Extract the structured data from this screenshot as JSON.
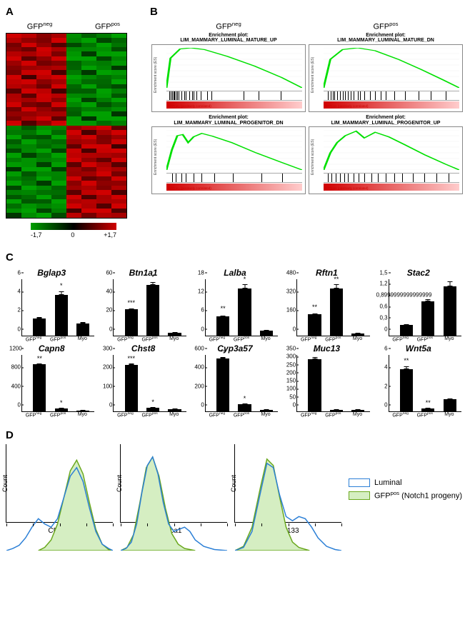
{
  "panelA": {
    "label": "A",
    "headers": [
      "GFPneg",
      "GFPpos"
    ],
    "cols": 8,
    "rows": 40,
    "scale": {
      "min": "-1,7",
      "mid": "0",
      "max": "+1,7"
    },
    "colors": {
      "low": "#00a000",
      "mid": "#000000",
      "high": "#d00000"
    }
  },
  "panelB": {
    "label": "B",
    "headers": [
      "GFPneg",
      "GFPpos"
    ],
    "curve_color": "#00e000",
    "ylabel": "Enrichment score (ES)",
    "plots": [
      {
        "title": "Enrichment plot:",
        "subtitle": "LIM_MAMMARY_LUMINAL_MATURE_UP",
        "curve": [
          [
            0,
            0
          ],
          [
            3,
            52
          ],
          [
            10,
            68
          ],
          [
            18,
            70
          ],
          [
            28,
            67
          ],
          [
            45,
            55
          ],
          [
            65,
            38
          ],
          [
            85,
            18
          ],
          [
            100,
            0
          ]
        ],
        "yticks": [
          "0.7",
          "0.6",
          "0.5",
          "0.4",
          "0.3",
          "0.2",
          "0.1",
          "0.0"
        ],
        "ticks": [
          2,
          3,
          4,
          5,
          6,
          7,
          8,
          9,
          11,
          13,
          14,
          17,
          19,
          20,
          22,
          25,
          30,
          33,
          57,
          68,
          84
        ],
        "corner": "GFPneg (positively correlated)"
      },
      {
        "title": "Enrichment plot:",
        "subtitle": "LIM_MAMMARY_LUMINAL_MATURE_DN",
        "curve": [
          [
            0,
            0
          ],
          [
            5,
            50
          ],
          [
            14,
            67
          ],
          [
            25,
            70
          ],
          [
            38,
            65
          ],
          [
            55,
            50
          ],
          [
            72,
            32
          ],
          [
            88,
            14
          ],
          [
            100,
            0
          ]
        ],
        "yticks": [
          "0.55",
          "0.50",
          "0.45",
          "0.40",
          "0.35",
          "0.30",
          "0.25",
          "0.20",
          "0.15",
          "0.10",
          "0.05",
          "0.00"
        ],
        "ticks": [
          3,
          5,
          7,
          8,
          10,
          12,
          14,
          16,
          18,
          20,
          22,
          25,
          27,
          30,
          34,
          38,
          42,
          46,
          52,
          60,
          70,
          79,
          90
        ],
        "corner": "GFPpos (positively correlated)"
      },
      {
        "title": "Enrichment plot:",
        "subtitle": "LIM_MAMMARY_LUMINAL_PROGENITOR_DN",
        "curve": [
          [
            0,
            0
          ],
          [
            4,
            35
          ],
          [
            8,
            60
          ],
          [
            12,
            62
          ],
          [
            16,
            48
          ],
          [
            20,
            58
          ],
          [
            26,
            64
          ],
          [
            34,
            59
          ],
          [
            48,
            48
          ],
          [
            66,
            30
          ],
          [
            84,
            14
          ],
          [
            100,
            0
          ]
        ],
        "yticks": [
          "0.55",
          "0.50",
          "0.45",
          "0.40",
          "0.35",
          "0.30",
          "0.25",
          "0.20",
          "0.15",
          "0.10",
          "0.05",
          "0.00"
        ],
        "ticks": [
          4,
          7,
          11,
          14,
          20,
          26,
          35,
          49,
          70,
          85
        ],
        "corner": "GFPneg (positively correlated)"
      },
      {
        "title": "Enrichment plot:",
        "subtitle": "LIM_MAMMARY_LUMINAL_PROGENITOR_UP",
        "curve": [
          [
            0,
            0
          ],
          [
            5,
            30
          ],
          [
            10,
            48
          ],
          [
            16,
            60
          ],
          [
            24,
            68
          ],
          [
            30,
            56
          ],
          [
            38,
            66
          ],
          [
            48,
            58
          ],
          [
            60,
            44
          ],
          [
            75,
            26
          ],
          [
            90,
            10
          ],
          [
            100,
            0
          ]
        ],
        "yticks": [
          "0.6",
          "0.5",
          "0.4",
          "0.3",
          "0.2",
          "0.1",
          "0.0"
        ],
        "ticks": [
          3,
          6,
          9,
          12,
          15,
          18,
          22,
          26,
          30,
          35,
          40,
          46,
          52,
          58,
          66,
          74,
          83,
          92
        ],
        "corner": "GFPpos (positively correlated)"
      }
    ]
  },
  "panelC": {
    "label": "C",
    "xlabels": [
      "GFPneg",
      "GFPpos",
      "Myo"
    ],
    "bar_color": "#000000",
    "font_italic": true,
    "charts": [
      {
        "gene": "Bglap3",
        "ymax": 6,
        "ytick_step": 2,
        "bars": [
          {
            "v": 1.8,
            "err": 0.6,
            "sig": ""
          },
          {
            "v": 4.3,
            "err": 0.5,
            "sig": "*"
          },
          {
            "v": 1.3,
            "err": 0.5,
            "sig": ""
          }
        ]
      },
      {
        "gene": "Btn1a1",
        "ymax": 60,
        "ytick_step": 20,
        "bars": [
          {
            "v": 28,
            "err": 2,
            "sig": "***"
          },
          {
            "v": 54,
            "err": 3,
            "sig": "*"
          },
          {
            "v": 3,
            "err": 1,
            "sig": ""
          }
        ]
      },
      {
        "gene": "Lalba",
        "ymax": 18,
        "ytick_step": 6,
        "bars": [
          {
            "v": 6,
            "err": 1,
            "sig": "**"
          },
          {
            "v": 15,
            "err": 1.5,
            "sig": "*"
          },
          {
            "v": 1.5,
            "err": 0.5,
            "sig": ""
          }
        ]
      },
      {
        "gene": "Rftn1",
        "ymax": 480,
        "ytick_step": 160,
        "bars": [
          {
            "v": 180,
            "err": 20,
            "sig": "**"
          },
          {
            "v": 400,
            "err": 40,
            "sig": "**"
          },
          {
            "v": 15,
            "err": 5,
            "sig": ""
          }
        ]
      },
      {
        "gene": "Stac2",
        "ymax": 1.5,
        "ytick_step": 0.3,
        "bars": [
          {
            "v": 0.28,
            "err": 0.03,
            "sig": ""
          },
          {
            "v": 0.9,
            "err": 0.1,
            "sig": ""
          },
          {
            "v": 1.3,
            "err": 0.15,
            "sig": ""
          }
        ],
        "yfmt": "comma"
      },
      {
        "gene": "Capn8",
        "ymax": 1200,
        "ytick_step": 400,
        "bars": [
          {
            "v": 1000,
            "err": 30,
            "sig": "**"
          },
          {
            "v": 60,
            "err": 20,
            "sig": "*"
          },
          {
            "v": 20,
            "err": 5,
            "sig": ""
          }
        ]
      },
      {
        "gene": "Chst8",
        "ymax": 300,
        "ytick_step": 100,
        "bars": [
          {
            "v": 245,
            "err": 10,
            "sig": "***"
          },
          {
            "v": 20,
            "err": 5,
            "sig": "*"
          },
          {
            "v": 10,
            "err": 3,
            "sig": ""
          }
        ]
      },
      {
        "gene": "Cyp3a57",
        "ymax": 600,
        "ytick_step": 200,
        "bars": [
          {
            "v": 560,
            "err": 20,
            "sig": "**"
          },
          {
            "v": 75,
            "err": 15,
            "sig": "*"
          },
          {
            "v": 15,
            "err": 5,
            "sig": ""
          }
        ]
      },
      {
        "gene": "Muc13",
        "ymax": 350,
        "ytick_step": 50,
        "bars": [
          {
            "v": 325,
            "err": 15,
            "sig": "*"
          },
          {
            "v": 10,
            "err": 3,
            "sig": ""
          },
          {
            "v": 8,
            "err": 2,
            "sig": ""
          }
        ]
      },
      {
        "gene": "Wnt5a",
        "ymax": 6,
        "ytick_step": 2,
        "bars": [
          {
            "v": 4.5,
            "err": 0.4,
            "sig": "**"
          },
          {
            "v": 0.3,
            "err": 0.1,
            "sig": "**"
          },
          {
            "v": 1.3,
            "err": 0.3,
            "sig": ""
          }
        ]
      }
    ]
  },
  "panelD": {
    "label": "D",
    "ylabel": "Count",
    "ymax": 100,
    "legend": [
      {
        "label": "Luminal",
        "stroke": "#2b7fd6",
        "fill": "none"
      },
      {
        "label": "GFPpos (Notch1 progeny)",
        "stroke": "#6aa81e",
        "fill": "#d5eec2"
      }
    ],
    "plots": [
      {
        "xlabel": "CD49b",
        "luminal": [
          [
            0,
            0
          ],
          [
            6,
            2
          ],
          [
            12,
            5
          ],
          [
            18,
            12
          ],
          [
            24,
            22
          ],
          [
            30,
            30
          ],
          [
            36,
            25
          ],
          [
            42,
            22
          ],
          [
            48,
            30
          ],
          [
            54,
            50
          ],
          [
            60,
            70
          ],
          [
            66,
            78
          ],
          [
            72,
            65
          ],
          [
            78,
            40
          ],
          [
            84,
            18
          ],
          [
            90,
            6
          ],
          [
            96,
            2
          ],
          [
            100,
            0
          ]
        ],
        "gfp": [
          [
            30,
            0
          ],
          [
            36,
            3
          ],
          [
            42,
            10
          ],
          [
            48,
            25
          ],
          [
            54,
            50
          ],
          [
            60,
            75
          ],
          [
            66,
            85
          ],
          [
            72,
            72
          ],
          [
            78,
            45
          ],
          [
            84,
            20
          ],
          [
            90,
            6
          ],
          [
            96,
            1
          ],
          [
            100,
            0
          ]
        ]
      },
      {
        "xlabel": "Sca1",
        "luminal": [
          [
            0,
            0
          ],
          [
            5,
            2
          ],
          [
            10,
            8
          ],
          [
            15,
            25
          ],
          [
            20,
            55
          ],
          [
            25,
            80
          ],
          [
            30,
            88
          ],
          [
            35,
            72
          ],
          [
            40,
            45
          ],
          [
            45,
            25
          ],
          [
            50,
            18
          ],
          [
            55,
            20
          ],
          [
            60,
            22
          ],
          [
            65,
            18
          ],
          [
            70,
            10
          ],
          [
            78,
            4
          ],
          [
            88,
            1
          ],
          [
            100,
            0
          ]
        ],
        "gfp": [
          [
            0,
            0
          ],
          [
            6,
            3
          ],
          [
            12,
            15
          ],
          [
            18,
            45
          ],
          [
            24,
            78
          ],
          [
            30,
            88
          ],
          [
            36,
            70
          ],
          [
            42,
            40
          ],
          [
            48,
            16
          ],
          [
            54,
            6
          ],
          [
            60,
            2
          ],
          [
            70,
            0
          ]
        ]
      },
      {
        "xlabel": "CD133",
        "luminal": [
          [
            0,
            0
          ],
          [
            8,
            3
          ],
          [
            16,
            18
          ],
          [
            24,
            55
          ],
          [
            30,
            82
          ],
          [
            36,
            78
          ],
          [
            42,
            52
          ],
          [
            48,
            32
          ],
          [
            54,
            28
          ],
          [
            60,
            32
          ],
          [
            66,
            30
          ],
          [
            72,
            22
          ],
          [
            78,
            12
          ],
          [
            86,
            4
          ],
          [
            94,
            1
          ],
          [
            100,
            0
          ]
        ],
        "gfp": [
          [
            0,
            0
          ],
          [
            8,
            4
          ],
          [
            16,
            22
          ],
          [
            24,
            60
          ],
          [
            30,
            86
          ],
          [
            36,
            80
          ],
          [
            42,
            50
          ],
          [
            48,
            22
          ],
          [
            54,
            8
          ],
          [
            60,
            3
          ],
          [
            70,
            0
          ]
        ]
      }
    ],
    "xticks_log": [
      0,
      25,
      50,
      75,
      100
    ]
  }
}
